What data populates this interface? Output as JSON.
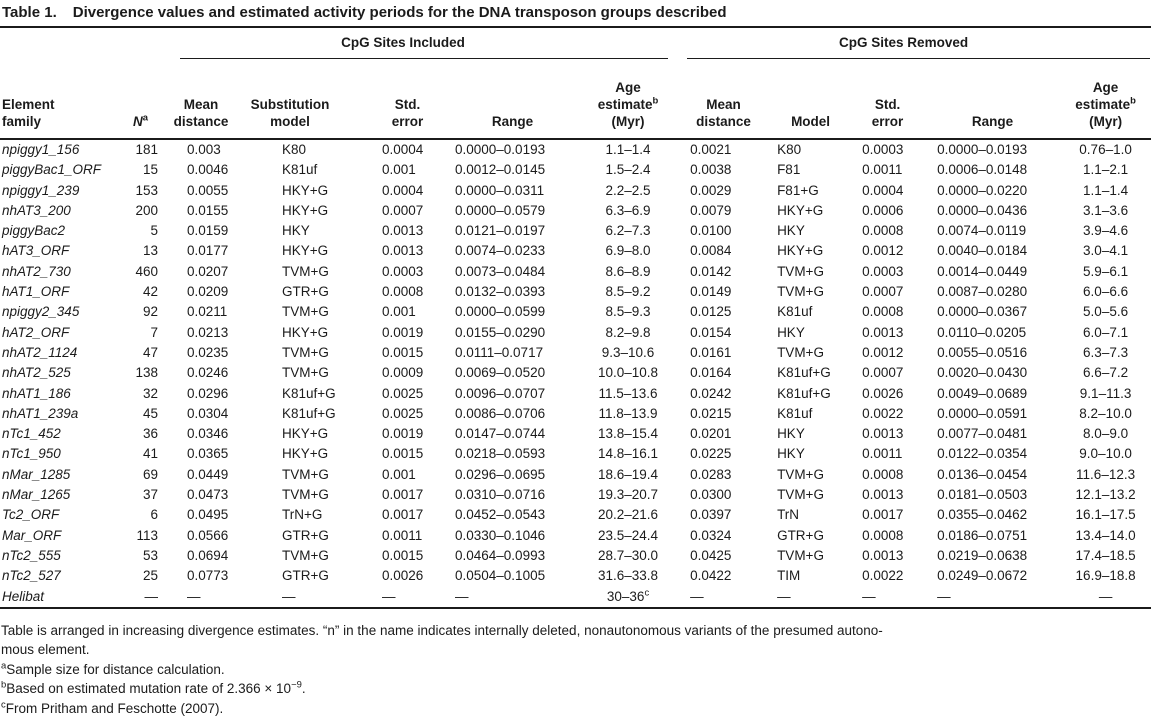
{
  "title": {
    "label": "Table 1.",
    "text": "Divergence values and estimated activity periods for the DNA transposon groups described"
  },
  "table": {
    "groups": [
      "CpG Sites Included",
      "CpG Sites Removed"
    ],
    "headers": {
      "element": {
        "line1": "Element",
        "line2": "family"
      },
      "n": {
        "text": "N",
        "sup": "a"
      },
      "mean_distance": {
        "line1": "Mean",
        "line2": "distance"
      },
      "substitution_model": {
        "line1": "Substitution",
        "line2": "model"
      },
      "model": "Model",
      "std_error": {
        "line1": "Std.",
        "line2": "error"
      },
      "range": "Range",
      "age": {
        "line1": "Age",
        "line2": "estimate",
        "sup": "b",
        "line3": "(Myr)"
      }
    },
    "col_keys": [
      "element-family",
      "n",
      "inc-mean-distance",
      "inc-substitution-model",
      "inc-std-error",
      "inc-range",
      "inc-age-estimate",
      "rem-mean-distance",
      "rem-model",
      "rem-std-error",
      "rem-range",
      "rem-age-estimate"
    ],
    "rows": [
      [
        "npiggy1_156",
        "181",
        "0.003",
        "K80",
        "0.0004",
        "0.0000–0.0193",
        "1.1–1.4",
        "0.0021",
        "K80",
        "0.0003",
        "0.0000–0.0193",
        "0.76–1.0"
      ],
      [
        "piggyBac1_ORF",
        "15",
        "0.0046",
        "K81uf",
        "0.001",
        "0.0012–0.0145",
        "1.5–2.4",
        "0.0038",
        "F81",
        "0.0011",
        "0.0006–0.0148",
        "1.1–2.1"
      ],
      [
        "npiggy1_239",
        "153",
        "0.0055",
        "HKY+G",
        "0.0004",
        "0.0000–0.0311",
        "2.2–2.5",
        "0.0029",
        "F81+G",
        "0.0004",
        "0.0000–0.0220",
        "1.1–1.4"
      ],
      [
        "nhAT3_200",
        "200",
        "0.0155",
        "HKY+G",
        "0.0007",
        "0.0000–0.0579",
        "6.3–6.9",
        "0.0079",
        "HKY+G",
        "0.0006",
        "0.0000–0.0436",
        "3.1–3.6"
      ],
      [
        "piggyBac2",
        "5",
        "0.0159",
        "HKY",
        "0.0013",
        "0.0121–0.0197",
        "6.2–7.3",
        "0.0100",
        "HKY",
        "0.0008",
        "0.0074–0.0119",
        "3.9–4.6"
      ],
      [
        "hAT3_ORF",
        "13",
        "0.0177",
        "HKY+G",
        "0.0013",
        "0.0074–0.0233",
        "6.9–8.0",
        "0.0084",
        "HKY+G",
        "0.0012",
        "0.0040–0.0184",
        "3.0–4.1"
      ],
      [
        "nhAT2_730",
        "460",
        "0.0207",
        "TVM+G",
        "0.0003",
        "0.0073–0.0484",
        "8.6–8.9",
        "0.0142",
        "TVM+G",
        "0.0003",
        "0.0014–0.0449",
        "5.9–6.1"
      ],
      [
        "hAT1_ORF",
        "42",
        "0.0209",
        "GTR+G",
        "0.0008",
        "0.0132–0.0393",
        "8.5–9.2",
        "0.0149",
        "TVM+G",
        "0.0007",
        "0.0087–0.0280",
        "6.0–6.6"
      ],
      [
        "npiggy2_345",
        "92",
        "0.0211",
        "TVM+G",
        "0.001",
        "0.0000–0.0599",
        "8.5–9.3",
        "0.0125",
        "K81uf",
        "0.0008",
        "0.0000–0.0367",
        "5.0–5.6"
      ],
      [
        "hAT2_ORF",
        "7",
        "0.0213",
        "HKY+G",
        "0.0019",
        "0.0155–0.0290",
        "8.2–9.8",
        "0.0154",
        "HKY",
        "0.0013",
        "0.0110–0.0205",
        "6.0–7.1"
      ],
      [
        "nhAT2_1124",
        "47",
        "0.0235",
        "TVM+G",
        "0.0015",
        "0.0111–0.0717",
        "9.3–10.6",
        "0.0161",
        "TVM+G",
        "0.0012",
        "0.0055–0.0516",
        "6.3–7.3"
      ],
      [
        "nhAT2_525",
        "138",
        "0.0246",
        "TVM+G",
        "0.0009",
        "0.0069–0.0520",
        "10.0–10.8",
        "0.0164",
        "K81uf+G",
        "0.0007",
        "0.0020–0.0430",
        "6.6–7.2"
      ],
      [
        "nhAT1_186",
        "32",
        "0.0296",
        "K81uf+G",
        "0.0025",
        "0.0096–0.0707",
        "11.5–13.6",
        "0.0242",
        "K81uf+G",
        "0.0026",
        "0.0049–0.0689",
        "9.1–11.3"
      ],
      [
        "nhAT1_239a",
        "45",
        "0.0304",
        "K81uf+G",
        "0.0025",
        "0.0086–0.0706",
        "11.8–13.9",
        "0.0215",
        "K81uf",
        "0.0022",
        "0.0000–0.0591",
        "8.2–10.0"
      ],
      [
        "nTc1_452",
        "36",
        "0.0346",
        "HKY+G",
        "0.0019",
        "0.0147–0.0744",
        "13.8–15.4",
        "0.0201",
        "HKY",
        "0.0013",
        "0.0077–0.0481",
        "8.0–9.0"
      ],
      [
        "nTc1_950",
        "41",
        "0.0365",
        "HKY+G",
        "0.0015",
        "0.0218–0.0593",
        "14.8–16.1",
        "0.0225",
        "HKY",
        "0.0011",
        "0.0122–0.0354",
        "9.0–10.0"
      ],
      [
        "nMar_1285",
        "69",
        "0.0449",
        "TVM+G",
        "0.001",
        "0.0296–0.0695",
        "18.6–19.4",
        "0.0283",
        "TVM+G",
        "0.0008",
        "0.0136–0.0454",
        "11.6–12.3"
      ],
      [
        "nMar_1265",
        "37",
        "0.0473",
        "TVM+G",
        "0.0017",
        "0.0310–0.0716",
        "19.3–20.7",
        "0.0300",
        "TVM+G",
        "0.0013",
        "0.0181–0.0503",
        "12.1–13.2"
      ],
      [
        "Tc2_ORF",
        "6",
        "0.0495",
        "TrN+G",
        "0.0017",
        "0.0452–0.0543",
        "20.2–21.6",
        "0.0397",
        "TrN",
        "0.0017",
        "0.0355–0.0462",
        "16.1–17.5"
      ],
      [
        "Mar_ORF",
        "113",
        "0.0566",
        "GTR+G",
        "0.0011",
        "0.0330–0.1046",
        "23.5–24.4",
        "0.0324",
        "GTR+G",
        "0.0008",
        "0.0186–0.0751",
        "13.4–14.0"
      ],
      [
        "nTc2_555",
        "53",
        "0.0694",
        "TVM+G",
        "0.0015",
        "0.0464–0.0993",
        "28.7–30.0",
        "0.0425",
        "TVM+G",
        "0.0013",
        "0.0219–0.0638",
        "17.4–18.5"
      ],
      [
        "nTc2_527",
        "25",
        "0.0773",
        "GTR+G",
        "0.0026",
        "0.0504–0.1005",
        "31.6–33.8",
        "0.0422",
        "TIM",
        "0.0022",
        "0.0249–0.0672",
        "16.9–18.8"
      ],
      [
        "Helibat",
        "—",
        "—",
        "—",
        "—",
        "—",
        "30–36^c",
        "—",
        "—",
        "—",
        "—",
        "—"
      ]
    ]
  },
  "footnotes": [
    {
      "segments": [
        {
          "t": "Table is arranged in increasing divergence estimates. “n” in the name indicates internally deleted, nonautonomous variants of the presumed autono-"
        },
        {
          "br": true
        },
        {
          "t": "mous element."
        }
      ]
    },
    {
      "segments": [
        {
          "sup": "a"
        },
        {
          "t": "Sample size for distance calculation."
        }
      ]
    },
    {
      "segments": [
        {
          "sup": "b"
        },
        {
          "t": "Based on estimated mutation rate of 2.366 × 10"
        },
        {
          "sup": "−9"
        },
        {
          "t": "."
        }
      ]
    },
    {
      "segments": [
        {
          "sup": "c"
        },
        {
          "t": "From Pritham and Feschotte (2007)."
        }
      ]
    }
  ],
  "colors": {
    "text": "#1b1b1b",
    "background": "#ffffff",
    "rule": "#1b1b1b"
  }
}
